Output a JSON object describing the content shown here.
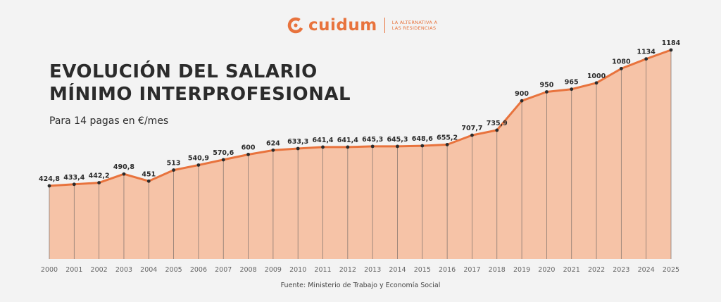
{
  "brand": {
    "name": "cuidum",
    "tagline_line1": "LA ALTERNATIVA A",
    "tagline_line2": "LAS RESIDENCIAS",
    "color": "#e8733d"
  },
  "header": {
    "title_line1": "EVOLUCIÓN DEL SALARIO",
    "title_line2": "MÍNIMO INTERPROFESIONAL",
    "subtitle": "Para 14 pagas en €/mes"
  },
  "footer": {
    "source": "Fuente: Ministerio de Trabajo y Economía Social"
  },
  "chart_data": {
    "type": "area",
    "title": "EVOLUCIÓN DEL SALARIO MÍNIMO INTERPROFESIONAL",
    "subtitle": "Para 14 pagas en €/mes",
    "xlabel": "",
    "ylabel": "",
    "x": [
      "2000",
      "2001",
      "2002",
      "2003",
      "2004",
      "2005",
      "2006",
      "2007",
      "2008",
      "2009",
      "2010",
      "2011",
      "2012",
      "2013",
      "2014",
      "2015",
      "2016",
      "2017",
      "2018",
      "2019",
      "2020",
      "2021",
      "2022",
      "2023",
      "2024",
      "2025"
    ],
    "values": [
      424.8,
      433.4,
      442.2,
      490.8,
      451,
      513,
      540.9,
      570.6,
      600,
      624,
      633.3,
      641.4,
      641.4,
      645.3,
      645.3,
      648.6,
      655.2,
      707.7,
      735.9,
      900,
      950,
      965,
      1000,
      1080,
      1134,
      1184
    ],
    "labels": [
      "424,8",
      "433,4",
      "442,2",
      "490,8",
      "451",
      "513",
      "540,9",
      "570,6",
      "600",
      "624",
      "633,3",
      "641,4",
      "641,4",
      "645,3",
      "645,3",
      "648,6",
      "655,2",
      "707,7",
      "735,9",
      "900",
      "950",
      "965",
      "1000",
      "1080",
      "1134",
      "1184"
    ],
    "grid": false,
    "colors": {
      "line": "#e8733d",
      "fill": "#f6c3a7",
      "marker": "#2b2b2b",
      "drop_line": "#8a7a72"
    }
  }
}
